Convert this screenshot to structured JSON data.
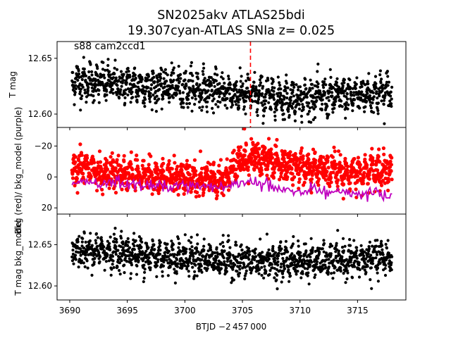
{
  "figure": {
    "title_line1": "SN2025akv  ATLAS25bdi",
    "title_line2": "19.307cyan-ATLAS SNIa z= 0.025",
    "xlabel": "BTJD −2 457 000",
    "x_ticks": [
      "3690",
      "3695",
      "3700",
      "3705",
      "3710",
      "3715"
    ]
  },
  "chart_data": [
    {
      "type": "scatter",
      "panel": "top",
      "ylabel": "T mag",
      "annotation": "s88 cam2ccd1",
      "y_inverted": true,
      "xlim": [
        3688.9,
        3719.2
      ],
      "ylim": [
        12.665,
        12.588
      ],
      "y_ticks": [
        "12.60",
        "12.65"
      ],
      "y_tick_values": [
        12.6,
        12.65
      ],
      "marker_line_x": 3705.7,
      "marker_line_color": "#ff0000",
      "series": [
        {
          "color": "#000000",
          "x_range": [
            3690.2,
            3718.0
          ],
          "trend": [
            [
              3690.2,
              12.63
            ],
            [
              3693.0,
              12.628
            ],
            [
              3697.0,
              12.625
            ],
            [
              3701.0,
              12.623
            ],
            [
              3705.0,
              12.618
            ],
            [
              3709.0,
              12.614
            ],
            [
              3713.0,
              12.616
            ],
            [
              3718.0,
              12.62
            ]
          ],
          "scatter_sigma": 0.008
        }
      ]
    },
    {
      "type": "scatter",
      "panel": "middle",
      "ylabel": "Bkg (red)/ bkg_model (purple)",
      "xlim": [
        3688.9,
        3719.2
      ],
      "ylim": [
        -32,
        24
      ],
      "y_ticks": [
        "20",
        "0",
        "−20"
      ],
      "y_tick_values": [
        20,
        0,
        -20
      ],
      "series": [
        {
          "color": "#ff0000",
          "x_range": [
            3690.2,
            3718.0
          ],
          "trend": [
            [
              3690.2,
              -1
            ],
            [
              3691.5,
              -8
            ],
            [
              3692.5,
              -4
            ],
            [
              3695.0,
              -2
            ],
            [
              3700.0,
              1
            ],
            [
              3703.5,
              2
            ],
            [
              3704.5,
              -8
            ],
            [
              3706.0,
              -13
            ],
            [
              3708.0,
              -9
            ],
            [
              3711.0,
              -6
            ],
            [
              3714.0,
              -3
            ],
            [
              3718.0,
              -5
            ]
          ],
          "scatter_sigma": 5
        },
        {
          "color": "#bf00bf",
          "x_range": [
            3690.2,
            3718.0
          ],
          "trend": [
            [
              3690.2,
              4
            ],
            [
              3695.0,
              5
            ],
            [
              3700.0,
              6
            ],
            [
              3703.0,
              7
            ],
            [
              3705.0,
              3
            ],
            [
              3708.0,
              7
            ],
            [
              3711.0,
              8
            ],
            [
              3714.0,
              10
            ],
            [
              3718.0,
              11
            ]
          ],
          "scatter_sigma": 2
        }
      ]
    },
    {
      "type": "scatter",
      "panel": "bottom",
      "ylabel": "T mag bkg_model",
      "y_inverted": true,
      "xlim": [
        3688.9,
        3719.2
      ],
      "ylim": [
        12.687,
        12.583
      ],
      "y_ticks": [
        "12.60",
        "12.65"
      ],
      "y_tick_values": [
        12.6,
        12.65
      ],
      "series": [
        {
          "color": "#000000",
          "x_range": [
            3690.2,
            3718.0
          ],
          "trend": [
            [
              3690.2,
              12.64
            ],
            [
              3693.0,
              12.642
            ],
            [
              3697.0,
              12.637
            ],
            [
              3701.0,
              12.634
            ],
            [
              3705.0,
              12.63
            ],
            [
              3709.0,
              12.63
            ],
            [
              3713.0,
              12.63
            ],
            [
              3718.0,
              12.634
            ]
          ],
          "scatter_sigma": 0.01
        }
      ]
    }
  ]
}
